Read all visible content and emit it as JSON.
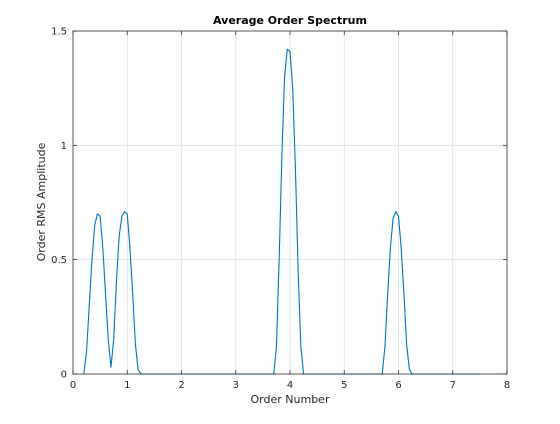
{
  "chart_data": {
    "type": "line",
    "title": "Average Order Spectrum",
    "xlabel": "Order Number",
    "ylabel": "Order RMS Amplitude",
    "xlim": [
      0,
      8
    ],
    "ylim": [
      0,
      1.5
    ],
    "xticks": [
      "0",
      "1",
      "2",
      "3",
      "4",
      "5",
      "6",
      "7",
      "8"
    ],
    "yticks": [
      "0",
      "0.5",
      "1",
      "1.5"
    ],
    "grid": true,
    "colors": {
      "line": "#0072BD",
      "grid": "#dfdfdf",
      "axis": "#262626"
    },
    "series": [
      {
        "x": [
          0.2,
          0.25,
          0.3,
          0.35,
          0.4,
          0.45,
          0.5,
          0.55,
          0.6,
          0.65,
          0.7,
          0.75,
          0.8,
          0.85,
          0.9,
          0.95,
          1.0,
          1.05,
          1.1,
          1.15,
          1.2,
          1.25,
          1.3,
          1.5,
          2.0,
          2.5,
          3.0,
          3.5,
          3.7,
          3.75,
          3.8,
          3.85,
          3.9,
          3.95,
          4.0,
          4.05,
          4.1,
          4.15,
          4.2,
          4.25,
          4.3,
          4.5,
          5.0,
          5.5,
          5.7,
          5.75,
          5.8,
          5.85,
          5.9,
          5.95,
          6.0,
          6.05,
          6.1,
          6.15,
          6.2,
          6.25,
          6.3,
          7.0,
          7.5
        ],
        "y": [
          0.0,
          0.1,
          0.3,
          0.5,
          0.65,
          0.7,
          0.69,
          0.55,
          0.35,
          0.15,
          0.03,
          0.15,
          0.4,
          0.6,
          0.69,
          0.71,
          0.7,
          0.55,
          0.35,
          0.13,
          0.02,
          0.0,
          0.0,
          0.0,
          0.0,
          0.0,
          0.0,
          0.0,
          0.0,
          0.12,
          0.5,
          0.95,
          1.3,
          1.42,
          1.41,
          1.25,
          0.9,
          0.45,
          0.12,
          0.0,
          0.0,
          0.0,
          0.0,
          0.0,
          0.0,
          0.12,
          0.35,
          0.55,
          0.68,
          0.71,
          0.69,
          0.55,
          0.35,
          0.13,
          0.02,
          0.0,
          0.0,
          0.0,
          0.0
        ]
      }
    ]
  }
}
